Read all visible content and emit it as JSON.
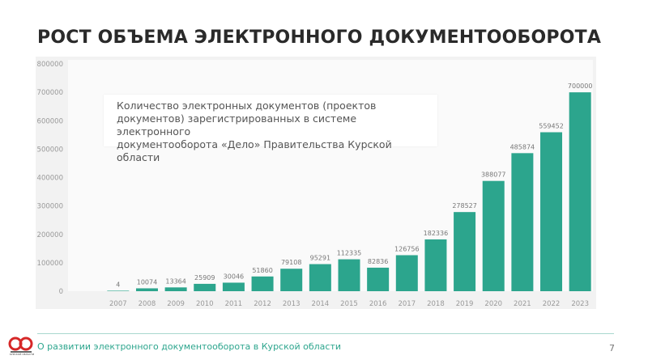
{
  "header": {
    "title": "РОСТ ОБЪЕМА ЭЛЕКТРОННОГО ДОКУМЕНТООБОРОТА"
  },
  "note": {
    "lines": [
      "Количество электронных документов (проектов",
      "документов) зарегистрированных в системе электронного",
      "документооборота «Дело» Правительства Курской области"
    ]
  },
  "footer": {
    "text": "О развитии электронного документооборота в Курской области",
    "page_number": "7",
    "logo_caption": "КУРСКОЙ ОБЛАСТИ"
  },
  "colors": {
    "bar": "#2ca58d",
    "footer_text": "#2ca58d",
    "accent_line": "#a8d8cf"
  },
  "chart_data": {
    "type": "bar",
    "categories": [
      "2007",
      "2008",
      "2009",
      "2010",
      "2011",
      "2012",
      "2013",
      "2014",
      "2015",
      "2016",
      "2017",
      "2018",
      "2019",
      "2020",
      "2021",
      "2022",
      "2023"
    ],
    "values": [
      4,
      10074,
      13364,
      25909,
      30046,
      51860,
      79108,
      95291,
      112335,
      82836,
      126756,
      182336,
      278527,
      388077,
      485874,
      559452,
      700000
    ],
    "data_labels": [
      "4",
      "10074",
      "13364",
      "25909",
      "30046",
      "51860",
      "79108",
      "95291",
      "112335",
      "82836",
      "126756",
      "182336",
      "278527",
      "388077",
      "485874",
      "559452",
      "700000"
    ],
    "y_ticks": [
      "0",
      "100000",
      "200000",
      "300000",
      "400000",
      "500000",
      "600000",
      "700000",
      "800000"
    ],
    "ylim": [
      0,
      800000
    ],
    "grid": false
  }
}
